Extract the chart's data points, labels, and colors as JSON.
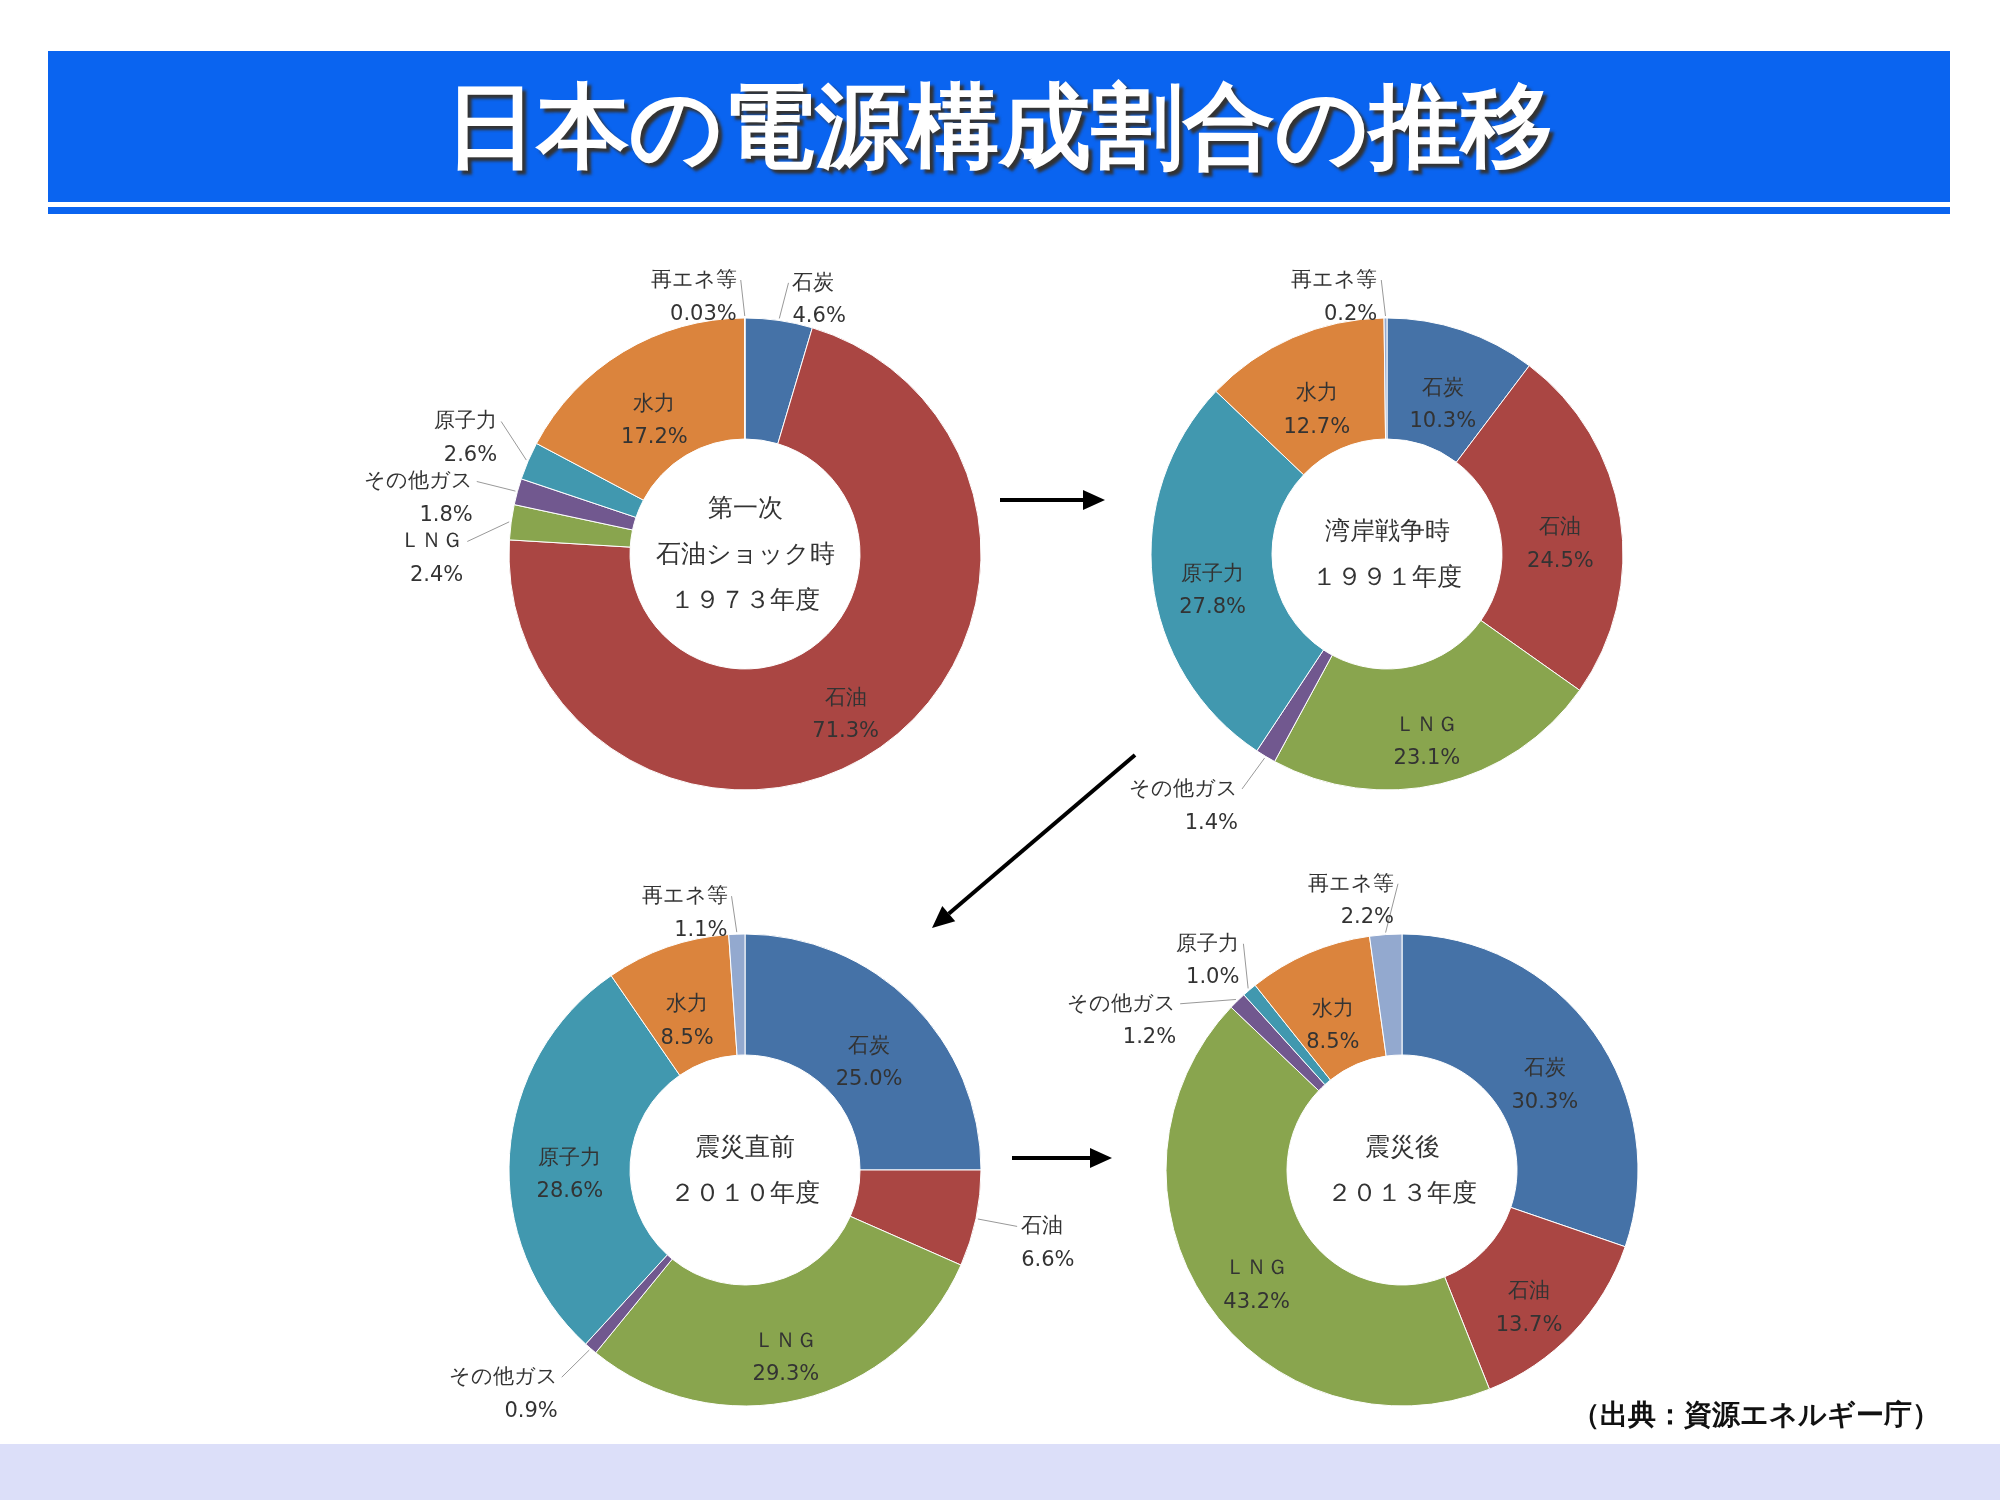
{
  "chart_data": [
    {
      "type": "donut",
      "title": "日本の電源構成割合の推移",
      "categories": [
        "石炭",
        "石油",
        "ＬＮＧ",
        "その他ガス",
        "原子力",
        "水力",
        "再エネ等"
      ],
      "values": [
        4.6,
        71.3,
        2.4,
        1.8,
        2.6,
        17.2,
        0.03
      ],
      "value_labels": [
        "4.6%",
        "71.3%",
        "2.4%",
        "1.8%",
        "2.6%",
        "17.2%",
        "0.03%"
      ],
      "colors": [
        "#4572a7",
        "#aa4643",
        "#89a54e",
        "#71588f",
        "#4198af",
        "#db843d",
        "#93a9cf"
      ],
      "annotations": [
        "第一次",
        "石油ショック時",
        "１９７３年度"
      ]
    },
    {
      "type": "donut",
      "categories": [
        "石炭",
        "石油",
        "ＬＮＧ",
        "その他ガス",
        "原子力",
        "水力",
        "再エネ等"
      ],
      "values": [
        10.3,
        24.5,
        23.1,
        1.4,
        27.8,
        12.7,
        0.2
      ],
      "value_labels": [
        "10.3%",
        "24.5%",
        "23.1%",
        "1.4%",
        "27.8%",
        "12.7%",
        "0.2%"
      ],
      "colors": [
        "#4572a7",
        "#aa4643",
        "#89a54e",
        "#71588f",
        "#4198af",
        "#db843d",
        "#93a9cf"
      ],
      "annotations": [
        "湾岸戦争時",
        "１９９１年度"
      ]
    },
    {
      "type": "donut",
      "categories": [
        "石炭",
        "石油",
        "ＬＮＧ",
        "その他ガス",
        "原子力",
        "水力",
        "再エネ等"
      ],
      "values": [
        25.0,
        6.6,
        29.3,
        0.9,
        28.6,
        8.5,
        1.1
      ],
      "value_labels": [
        "25.0%",
        "6.6%",
        "29.3%",
        "0.9%",
        "28.6%",
        "8.5%",
        "1.1%"
      ],
      "colors": [
        "#4572a7",
        "#aa4643",
        "#89a54e",
        "#71588f",
        "#4198af",
        "#db843d",
        "#93a9cf"
      ],
      "annotations": [
        "震災直前",
        "２０１０年度"
      ]
    },
    {
      "type": "donut",
      "categories": [
        "石炭",
        "石油",
        "ＬＮＧ",
        "その他ガス",
        "原子力",
        "水力",
        "再エネ等"
      ],
      "values": [
        30.3,
        13.7,
        43.2,
        1.2,
        1.0,
        8.5,
        2.2
      ],
      "value_labels": [
        "30.3%",
        "13.7%",
        "43.2%",
        "1.2%",
        "1.0%",
        "8.5%",
        "2.2%"
      ],
      "colors": [
        "#4572a7",
        "#aa4643",
        "#89a54e",
        "#71588f",
        "#4198af",
        "#db843d",
        "#93a9cf"
      ],
      "annotations": [
        "震災後",
        "２０１３年度",
        "（出典：資源エネルギー庁）"
      ]
    }
  ]
}
